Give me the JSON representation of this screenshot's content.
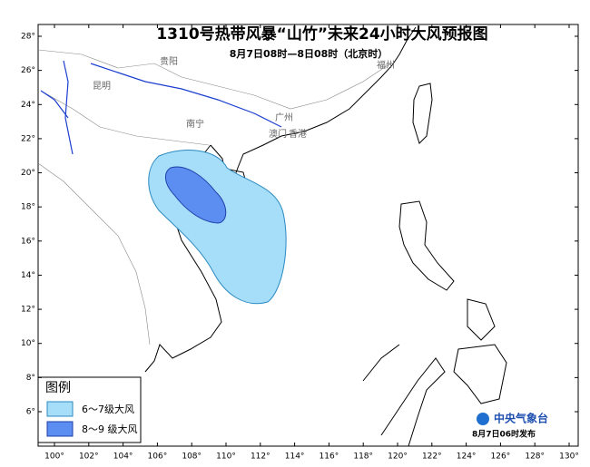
{
  "map": {
    "title": "1310号热带风暴“山竹”未来24小时大风预报图",
    "subtitle": "8月7日08时—8日08时（北京时）",
    "lonticks": [
      {
        "value": 100,
        "label": "100°"
      },
      {
        "value": 102,
        "label": "102°"
      },
      {
        "value": 104,
        "label": "104°"
      },
      {
        "value": 106,
        "label": "106°"
      },
      {
        "value": 108,
        "label": "108°"
      },
      {
        "value": 110,
        "label": "110°"
      },
      {
        "value": 112,
        "label": "112°"
      },
      {
        "value": 114,
        "label": "114°"
      },
      {
        "value": 116,
        "label": "116°"
      },
      {
        "value": 118,
        "label": "118°"
      },
      {
        "value": 120,
        "label": "120°"
      },
      {
        "value": 122,
        "label": "122°"
      },
      {
        "value": 124,
        "label": "124°"
      },
      {
        "value": 126,
        "label": "126°"
      },
      {
        "value": 128,
        "label": "128°"
      },
      {
        "value": 130,
        "label": "130°"
      }
    ],
    "latticks": [
      {
        "value": 6,
        "label": "6°"
      },
      {
        "value": 8,
        "label": "8°"
      },
      {
        "value": 10,
        "label": "10°"
      },
      {
        "value": 12,
        "label": "12°"
      },
      {
        "value": 14,
        "label": "14°"
      },
      {
        "value": 16,
        "label": "16°"
      },
      {
        "value": 18,
        "label": "18°"
      },
      {
        "value": 20,
        "label": "20°"
      },
      {
        "value": 22,
        "label": "22°"
      },
      {
        "value": 24,
        "label": "24°"
      },
      {
        "value": 26,
        "label": "26°"
      },
      {
        "value": 28,
        "label": "28°"
      }
    ],
    "cities": [
      "昆明",
      "贵阳",
      "南宁",
      "广州",
      "澳门",
      "香港",
      "福州"
    ],
    "legend": {
      "title": "图例",
      "items": [
        "6～7级大风",
        "8～9 级大风"
      ]
    },
    "publisher": "中央气象台",
    "release": "8月7日06时发布"
  }
}
